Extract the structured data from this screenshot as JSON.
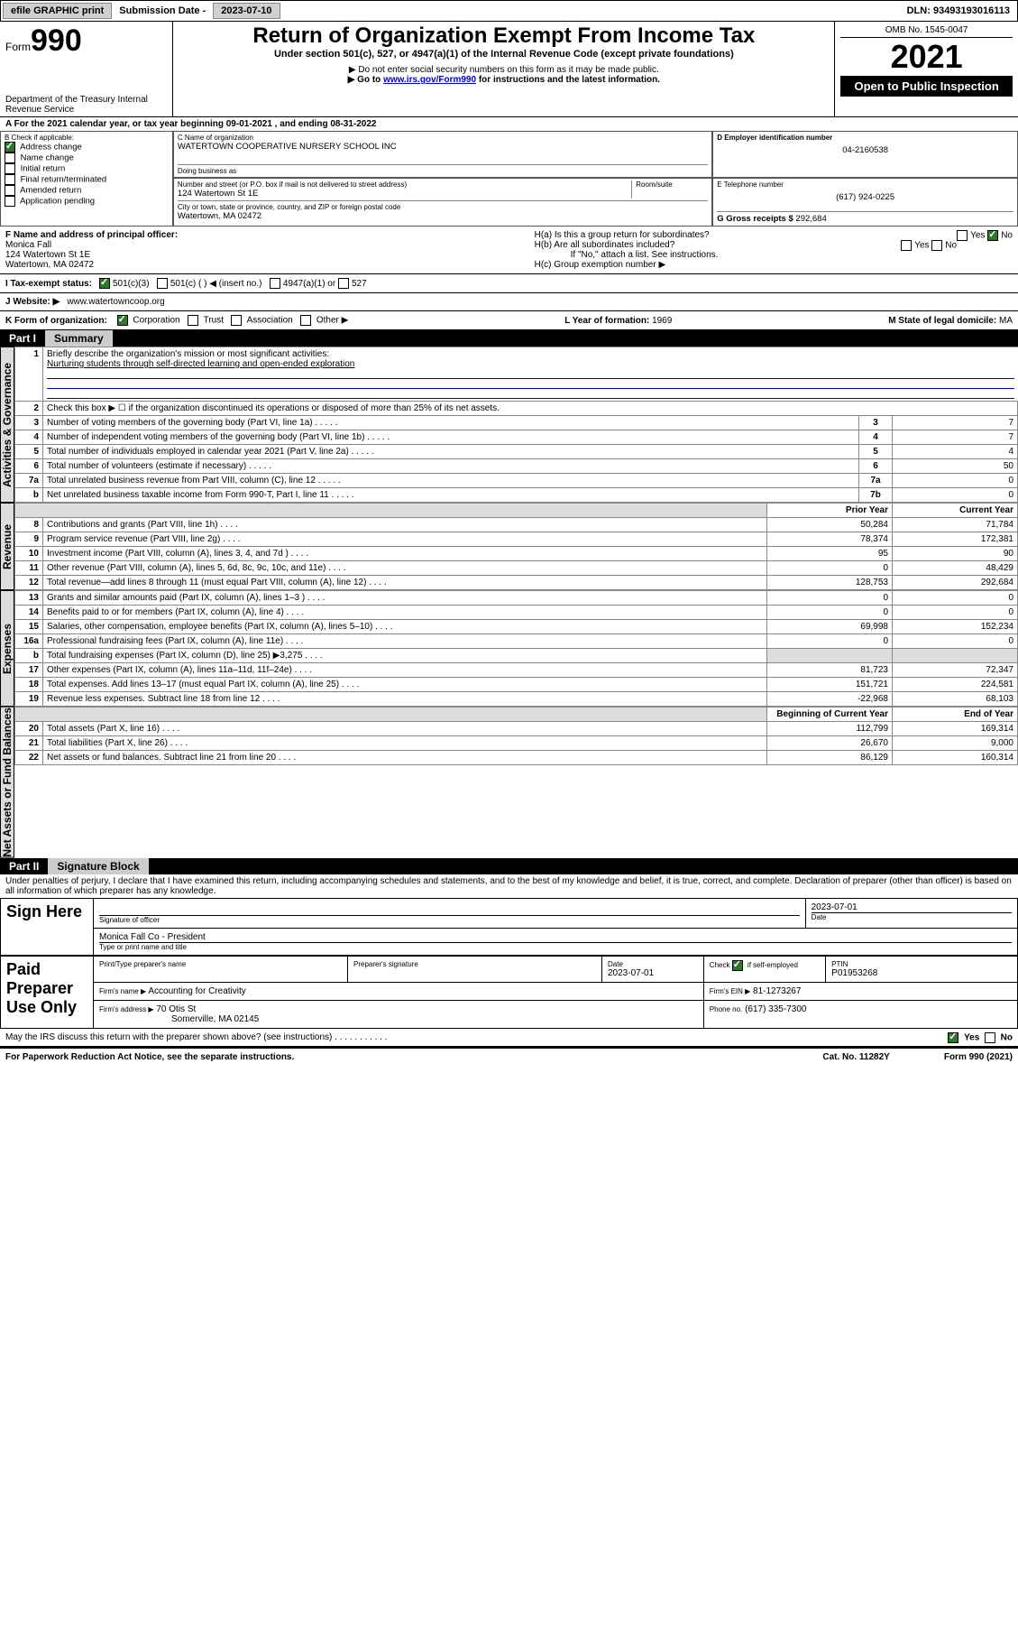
{
  "topbar": {
    "efile": "efile GRAPHIC print",
    "subdate_label": "Submission Date -",
    "subdate": "2023-07-10",
    "dln_label": "DLN:",
    "dln": "93493193016113"
  },
  "header": {
    "form_label": "Form",
    "form_num": "990",
    "dept": "Department of the Treasury Internal Revenue Service",
    "title": "Return of Organization Exempt From Income Tax",
    "subtitle": "Under section 501(c), 527, or 4947(a)(1) of the Internal Revenue Code (except private foundations)",
    "note1": "▶ Do not enter social security numbers on this form as it may be made public.",
    "note2_pre": "▶ Go to ",
    "note2_link": "www.irs.gov/Form990",
    "note2_post": " for instructions and the latest information.",
    "omb": "OMB No. 1545-0047",
    "year": "2021",
    "open": "Open to Public Inspection"
  },
  "sectionA": {
    "text_pre": "A For the 2021 calendar year, or tax year beginning ",
    "begin": "09-01-2021",
    "mid": " , and ending ",
    "end": "08-31-2022"
  },
  "boxB": {
    "label": "B Check if applicable:",
    "items": [
      {
        "label": "Address change",
        "checked": true
      },
      {
        "label": "Name change",
        "checked": false
      },
      {
        "label": "Initial return",
        "checked": false
      },
      {
        "label": "Final return/terminated",
        "checked": false
      },
      {
        "label": "Amended return",
        "checked": false
      },
      {
        "label": "Application pending",
        "checked": false
      }
    ]
  },
  "boxC": {
    "name_label": "C Name of organization",
    "name": "WATERTOWN COOPERATIVE NURSERY SCHOOL INC",
    "dba_label": "Doing business as",
    "addr_label": "Number and street (or P.O. box if mail is not delivered to street address)",
    "room_label": "Room/suite",
    "addr": "124 Watertown St 1E",
    "city_label": "City or town, state or province, country, and ZIP or foreign postal code",
    "city": "Watertown, MA  02472"
  },
  "boxD": {
    "label": "D Employer identification number",
    "value": "04-2160538"
  },
  "boxE": {
    "label": "E Telephone number",
    "value": "(617) 924-0225"
  },
  "boxG": {
    "label": "G Gross receipts $",
    "value": "292,684"
  },
  "boxF": {
    "label": "F Name and address of principal officer:",
    "name": "Monica Fall",
    "addr1": "124 Watertown St 1E",
    "addr2": "Watertown, MA  02472"
  },
  "boxH": {
    "a": "H(a)  Is this a group return for subordinates?",
    "a_yes": "Yes",
    "a_no": "No",
    "b": "H(b)  Are all subordinates included?",
    "b_yes": "Yes",
    "b_no": "No",
    "b_note": "If \"No,\" attach a list. See instructions.",
    "c": "H(c)  Group exemption number ▶"
  },
  "boxI": {
    "label": "I  Tax-exempt status:",
    "opts": [
      "501(c)(3)",
      "501(c) (  ) ◀ (insert no.)",
      "4947(a)(1) or",
      "527"
    ]
  },
  "boxJ": {
    "label": "J   Website: ▶",
    "value": "www.watertowncoop.org"
  },
  "boxK": {
    "label": "K Form of organization:",
    "opts": [
      "Corporation",
      "Trust",
      "Association",
      "Other ▶"
    ]
  },
  "boxL": {
    "label": "L Year of formation:",
    "value": "1969"
  },
  "boxM": {
    "label": "M State of legal domicile:",
    "value": "MA"
  },
  "part1": {
    "num": "Part I",
    "title": "Summary",
    "line1_label": "Briefly describe the organization's mission or most significant activities:",
    "line1_text": "Nurturing students through self-directed learning and open-ended exploration",
    "line2": "Check this box ▶ ☐  if the organization discontinued its operations or disposed of more than 25% of its net assets.",
    "rows_gov": [
      {
        "n": "3",
        "t": "Number of voting members of the governing body (Part VI, line 1a)",
        "box": "3",
        "v": "7"
      },
      {
        "n": "4",
        "t": "Number of independent voting members of the governing body (Part VI, line 1b)",
        "box": "4",
        "v": "7"
      },
      {
        "n": "5",
        "t": "Total number of individuals employed in calendar year 2021 (Part V, line 2a)",
        "box": "5",
        "v": "4"
      },
      {
        "n": "6",
        "t": "Total number of volunteers (estimate if necessary)",
        "box": "6",
        "v": "50"
      },
      {
        "n": "7a",
        "t": "Total unrelated business revenue from Part VIII, column (C), line 12",
        "box": "7a",
        "v": "0"
      },
      {
        "n": "b",
        "t": "Net unrelated business taxable income from Form 990-T, Part I, line 11",
        "box": "7b",
        "v": "0"
      }
    ],
    "prior_label": "Prior Year",
    "current_label": "Current Year",
    "rows_rev": [
      {
        "n": "8",
        "t": "Contributions and grants (Part VIII, line 1h)",
        "p": "50,284",
        "c": "71,784"
      },
      {
        "n": "9",
        "t": "Program service revenue (Part VIII, line 2g)",
        "p": "78,374",
        "c": "172,381"
      },
      {
        "n": "10",
        "t": "Investment income (Part VIII, column (A), lines 3, 4, and 7d )",
        "p": "95",
        "c": "90"
      },
      {
        "n": "11",
        "t": "Other revenue (Part VIII, column (A), lines 5, 6d, 8c, 9c, 10c, and 11e)",
        "p": "0",
        "c": "48,429"
      },
      {
        "n": "12",
        "t": "Total revenue—add lines 8 through 11 (must equal Part VIII, column (A), line 12)",
        "p": "128,753",
        "c": "292,684"
      }
    ],
    "rows_exp": [
      {
        "n": "13",
        "t": "Grants and similar amounts paid (Part IX, column (A), lines 1–3 )",
        "p": "0",
        "c": "0"
      },
      {
        "n": "14",
        "t": "Benefits paid to or for members (Part IX, column (A), line 4)",
        "p": "0",
        "c": "0"
      },
      {
        "n": "15",
        "t": "Salaries, other compensation, employee benefits (Part IX, column (A), lines 5–10)",
        "p": "69,998",
        "c": "152,234"
      },
      {
        "n": "16a",
        "t": "Professional fundraising fees (Part IX, column (A), line 11e)",
        "p": "0",
        "c": "0"
      },
      {
        "n": "b",
        "t": "Total fundraising expenses (Part IX, column (D), line 25) ▶3,275",
        "p": "",
        "c": "",
        "shade": true
      },
      {
        "n": "17",
        "t": "Other expenses (Part IX, column (A), lines 11a–11d, 11f–24e)",
        "p": "81,723",
        "c": "72,347"
      },
      {
        "n": "18",
        "t": "Total expenses. Add lines 13–17 (must equal Part IX, column (A), line 25)",
        "p": "151,721",
        "c": "224,581"
      },
      {
        "n": "19",
        "t": "Revenue less expenses. Subtract line 18 from line 12",
        "p": "-22,968",
        "c": "68,103"
      }
    ],
    "begin_label": "Beginning of Current Year",
    "end_label": "End of Year",
    "rows_net": [
      {
        "n": "20",
        "t": "Total assets (Part X, line 16)",
        "p": "112,799",
        "c": "169,314"
      },
      {
        "n": "21",
        "t": "Total liabilities (Part X, line 26)",
        "p": "26,670",
        "c": "9,000"
      },
      {
        "n": "22",
        "t": "Net assets or fund balances. Subtract line 21 from line 20",
        "p": "86,129",
        "c": "160,314"
      }
    ]
  },
  "sidelabels": {
    "gov": "Activities & Governance",
    "rev": "Revenue",
    "exp": "Expenses",
    "net": "Net Assets or Fund Balances"
  },
  "part2": {
    "num": "Part II",
    "title": "Signature Block",
    "decl": "Under penalties of perjury, I declare that I have examined this return, including accompanying schedules and statements, and to the best of my knowledge and belief, it is true, correct, and complete. Declaration of preparer (other than officer) is based on all information of which preparer has any knowledge.",
    "sign_here": "Sign Here",
    "sig_officer": "Signature of officer",
    "sig_date": "2023-07-01",
    "date_lbl": "Date",
    "officer_name": "Monica Fall  Co - President",
    "officer_type": "Type or print name and title",
    "paid": "Paid Preparer Use Only",
    "prep_name_lbl": "Print/Type preparer's name",
    "prep_sig_lbl": "Preparer's signature",
    "prep_date_lbl": "Date",
    "prep_date": "2023-07-01",
    "self_emp": "Check ☑ if self-employed",
    "ptin_lbl": "PTIN",
    "ptin": "P01953268",
    "firm_name_lbl": "Firm's name ▶",
    "firm_name": "Accounting for Creativity",
    "firm_ein_lbl": "Firm's EIN ▶",
    "firm_ein": "81-1273267",
    "firm_addr_lbl": "Firm's address ▶",
    "firm_addr": "70 Otis St",
    "firm_city": "Somerville, MA  02145",
    "phone_lbl": "Phone no.",
    "phone": "(617) 335-7300",
    "may_irs": "May the IRS discuss this return with the preparer shown above? (see instructions)",
    "yes": "Yes",
    "no": "No"
  },
  "footer": {
    "pra": "For Paperwork Reduction Act Notice, see the separate instructions.",
    "cat": "Cat. No. 11282Y",
    "form": "Form 990 (2021)"
  }
}
